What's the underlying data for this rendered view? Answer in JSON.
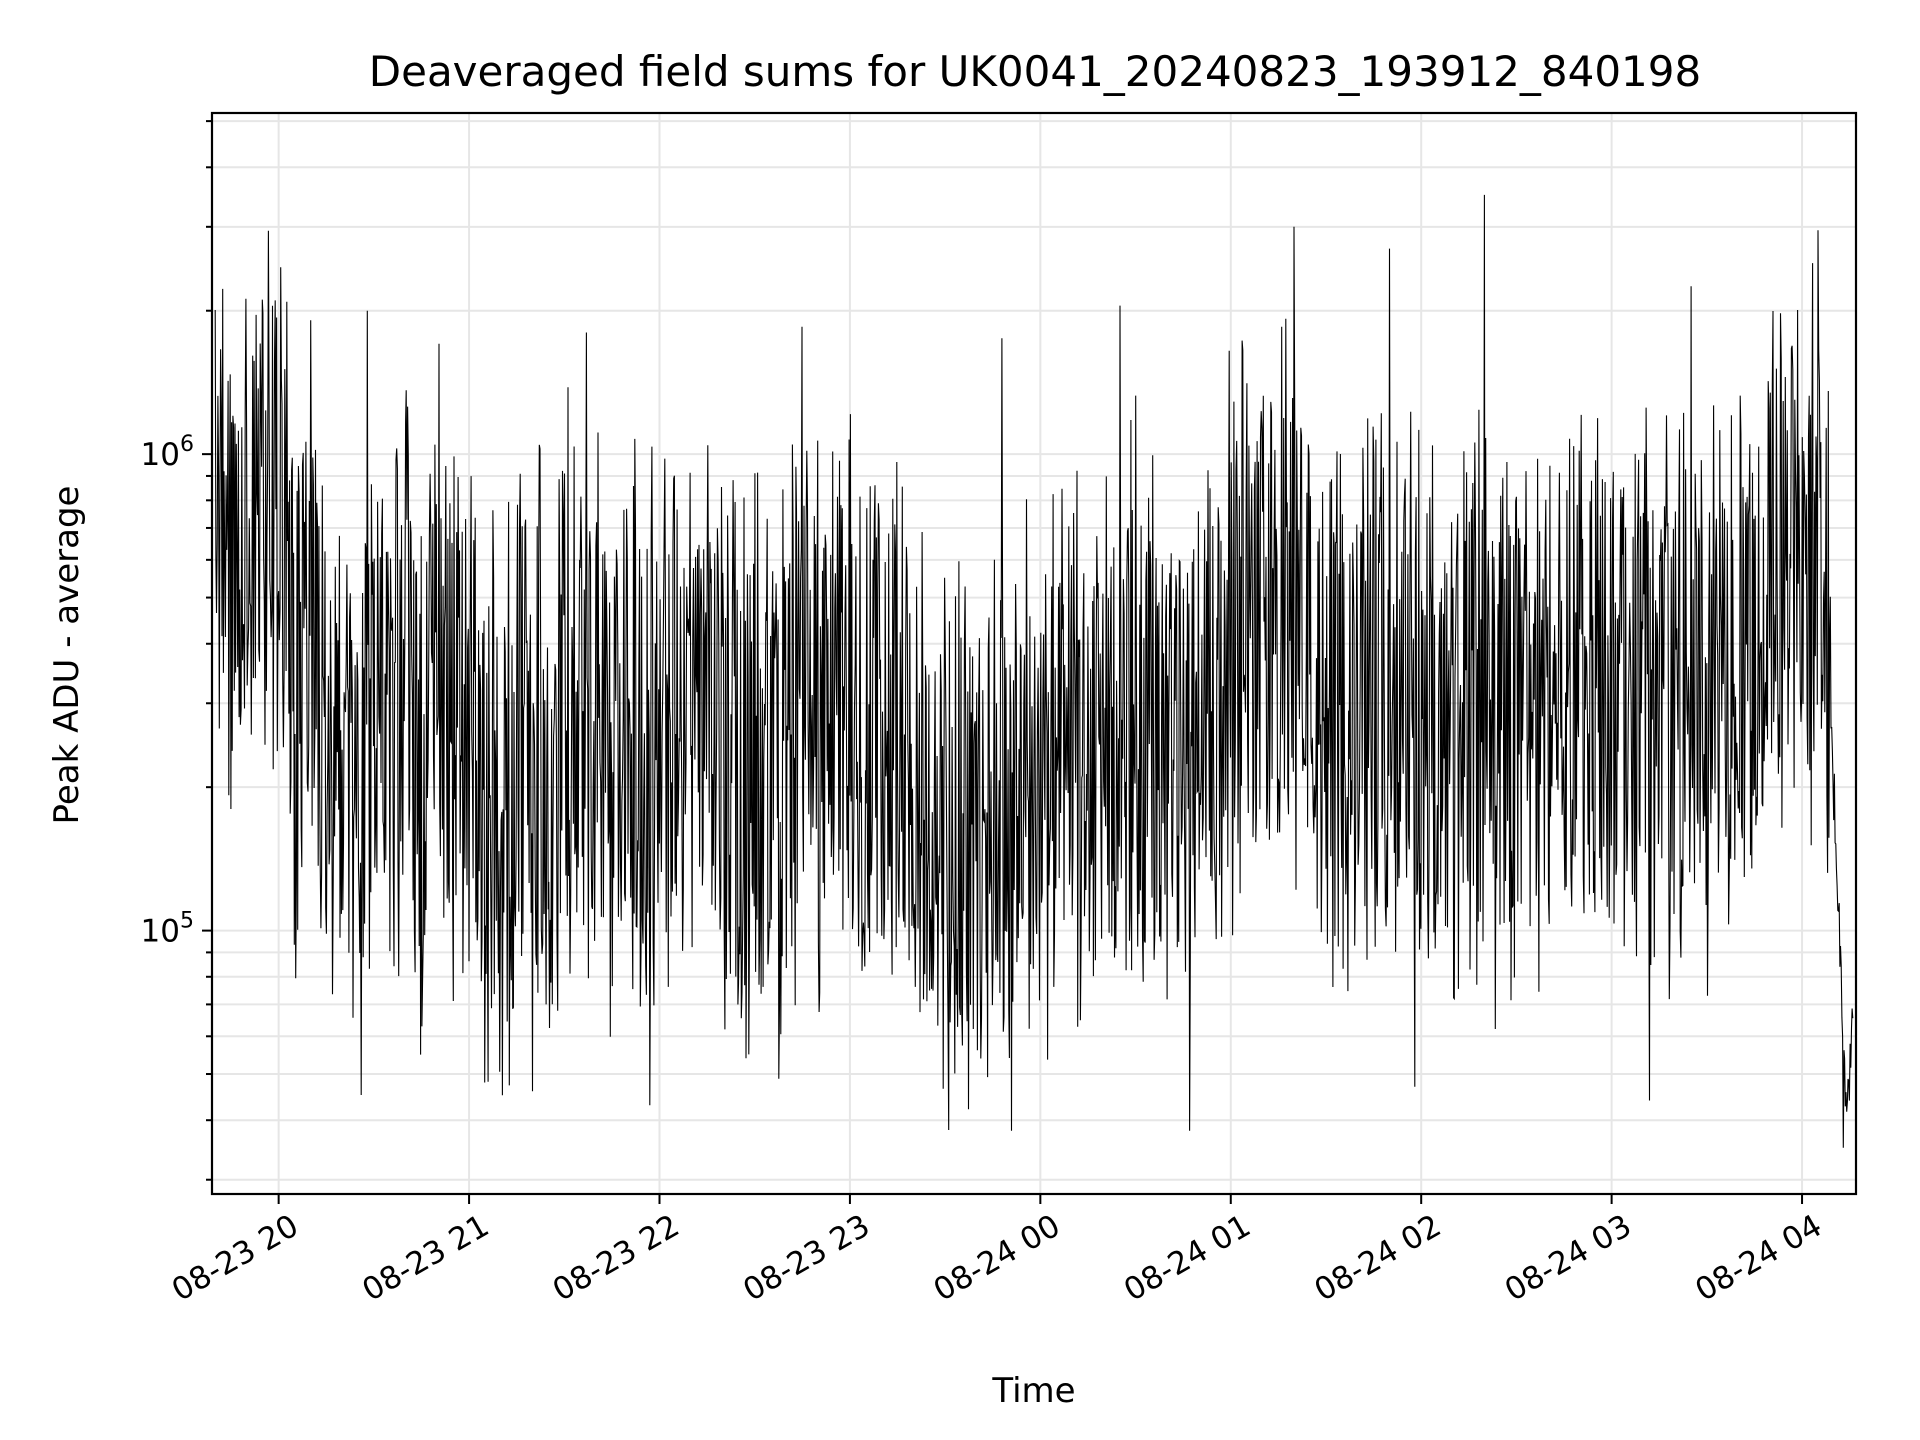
{
  "chart_data": {
    "type": "line",
    "title": "Deaveraged field sums for UK0041_20240823_193912_840198",
    "xlabel": "Time",
    "ylabel": "Peak ADU - average",
    "yscale": "log",
    "xlim": [
      "2024-08-23 19:39",
      "2024-08-24 04:17"
    ],
    "ylim": [
      28000,
      5200000
    ],
    "grid": true,
    "x_ticks": [
      "08-23 20",
      "08-23 21",
      "08-23 22",
      "08-23 23",
      "08-24 00",
      "08-24 01",
      "08-24 02",
      "08-24 03",
      "08-24 04"
    ],
    "y_ticks": [
      {
        "value": 100000,
        "base": "10",
        "exp": "5"
      },
      {
        "value": 1000000,
        "base": "10",
        "exp": "6"
      }
    ],
    "line_color": "#000000",
    "series": [
      {
        "points": [
          [
            "2024-08-23 19:40",
            800000
          ],
          [
            "2024-08-23 19:45",
            420000
          ],
          [
            "2024-08-23 19:50",
            600000
          ],
          [
            "2024-08-23 19:55",
            780000
          ],
          [
            "2024-08-23 20:00",
            900000
          ],
          [
            "2024-08-23 20:05",
            300000
          ],
          [
            "2024-08-23 20:10",
            520000
          ],
          [
            "2024-08-23 20:15",
            180000
          ],
          [
            "2024-08-23 20:20",
            250000
          ],
          [
            "2024-08-23 20:25",
            140000
          ],
          [
            "2024-08-23 20:30",
            380000
          ],
          [
            "2024-08-23 20:35",
            210000
          ],
          [
            "2024-08-23 20:40",
            330000
          ],
          [
            "2024-08-23 20:45",
            170000
          ],
          [
            "2024-08-23 20:50",
            420000
          ],
          [
            "2024-08-23 20:55",
            260000
          ],
          [
            "2024-08-23 21:00",
            310000
          ],
          [
            "2024-08-23 21:05",
            200000
          ],
          [
            "2024-08-23 21:10",
            150000
          ],
          [
            "2024-08-23 21:15",
            230000
          ],
          [
            "2024-08-23 21:20",
            290000
          ],
          [
            "2024-08-23 21:25",
            180000
          ],
          [
            "2024-08-23 21:30",
            350000
          ],
          [
            "2024-08-23 21:35",
            240000
          ],
          [
            "2024-08-23 21:40",
            270000
          ],
          [
            "2024-08-23 21:45",
            190000
          ],
          [
            "2024-08-23 21:50",
            320000
          ],
          [
            "2024-08-23 21:55",
            220000
          ],
          [
            "2024-08-23 22:00",
            260000
          ],
          [
            "2024-08-23 22:05",
            300000
          ],
          [
            "2024-08-23 22:10",
            210000
          ],
          [
            "2024-08-23 22:15",
            280000
          ],
          [
            "2024-08-23 22:20",
            240000
          ],
          [
            "2024-08-23 22:25",
            190000
          ],
          [
            "2024-08-23 22:30",
            230000
          ],
          [
            "2024-08-23 22:35",
            170000
          ],
          [
            "2024-08-23 22:40",
            200000
          ],
          [
            "2024-08-23 22:45",
            330000
          ],
          [
            "2024-08-23 22:50",
            250000
          ],
          [
            "2024-08-23 22:55",
            300000
          ],
          [
            "2024-08-23 23:00",
            280000
          ],
          [
            "2024-08-23 23:05",
            220000
          ],
          [
            "2024-08-23 23:10",
            260000
          ],
          [
            "2024-08-23 23:15",
            310000
          ],
          [
            "2024-08-23 23:20",
            200000
          ],
          [
            "2024-08-23 23:25",
            160000
          ],
          [
            "2024-08-23 23:30",
            140000
          ],
          [
            "2024-08-23 23:35",
            180000
          ],
          [
            "2024-08-23 23:40",
            150000
          ],
          [
            "2024-08-23 23:45",
            170000
          ],
          [
            "2024-08-23 23:50",
            190000
          ],
          [
            "2024-08-23 23:55",
            210000
          ],
          [
            "2024-08-24 00:00",
            230000
          ],
          [
            "2024-08-24 00:05",
            180000
          ],
          [
            "2024-08-24 00:10",
            250000
          ],
          [
            "2024-08-24 00:15",
            200000
          ],
          [
            "2024-08-24 00:20",
            270000
          ],
          [
            "2024-08-24 00:25",
            220000
          ],
          [
            "2024-08-24 00:30",
            300000
          ],
          [
            "2024-08-24 00:35",
            240000
          ],
          [
            "2024-08-24 00:40",
            260000
          ],
          [
            "2024-08-24 00:45",
            210000
          ],
          [
            "2024-08-24 00:50",
            290000
          ],
          [
            "2024-08-24 00:55",
            330000
          ],
          [
            "2024-08-24 01:00",
            380000
          ],
          [
            "2024-08-24 01:05",
            420000
          ],
          [
            "2024-08-24 01:10",
            500000
          ],
          [
            "2024-08-24 01:15",
            560000
          ],
          [
            "2024-08-24 01:20",
            480000
          ],
          [
            "2024-08-24 01:25",
            380000
          ],
          [
            "2024-08-24 01:30",
            300000
          ],
          [
            "2024-08-24 01:35",
            220000
          ],
          [
            "2024-08-24 01:40",
            260000
          ],
          [
            "2024-08-24 01:45",
            310000
          ],
          [
            "2024-08-24 01:50",
            280000
          ],
          [
            "2024-08-24 01:55",
            350000
          ],
          [
            "2024-08-24 02:00",
            300000
          ],
          [
            "2024-08-24 02:05",
            240000
          ],
          [
            "2024-08-24 02:10",
            270000
          ],
          [
            "2024-08-24 02:15",
            320000
          ],
          [
            "2024-08-24 02:20",
            260000
          ],
          [
            "2024-08-24 02:25",
            230000
          ],
          [
            "2024-08-24 02:30",
            280000
          ],
          [
            "2024-08-24 02:35",
            250000
          ],
          [
            "2024-08-24 02:40",
            300000
          ],
          [
            "2024-08-24 02:45",
            340000
          ],
          [
            "2024-08-24 02:50",
            270000
          ],
          [
            "2024-08-24 02:55",
            310000
          ],
          [
            "2024-08-24 03:00",
            360000
          ],
          [
            "2024-08-24 03:05",
            290000
          ],
          [
            "2024-08-24 03:10",
            330000
          ],
          [
            "2024-08-24 03:15",
            260000
          ],
          [
            "2024-08-24 03:20",
            300000
          ],
          [
            "2024-08-24 03:25",
            350000
          ],
          [
            "2024-08-24 03:30",
            280000
          ],
          [
            "2024-08-24 03:35",
            320000
          ],
          [
            "2024-08-24 03:40",
            380000
          ],
          [
            "2024-08-24 03:45",
            450000
          ],
          [
            "2024-08-24 03:50",
            550000
          ],
          [
            "2024-08-24 03:55",
            620000
          ],
          [
            "2024-08-24 04:00",
            700000
          ],
          [
            "2024-08-24 04:05",
            520000
          ],
          [
            "2024-08-24 04:08",
            330000
          ],
          [
            "2024-08-24 04:10",
            200000
          ],
          [
            "2024-08-24 04:12",
            90000
          ],
          [
            "2024-08-24 04:14",
            45000
          ],
          [
            "2024-08-24 04:16",
            60000
          ]
        ],
        "spikes": [
          [
            "2024-08-23 20:28",
            2000000
          ],
          [
            "2024-08-23 21:37",
            1800000
          ],
          [
            "2024-08-23 22:45",
            1850000
          ],
          [
            "2024-08-23 23:48",
            1750000
          ],
          [
            "2024-08-24 00:25",
            2050000
          ],
          [
            "2024-08-24 01:20",
            3000000
          ],
          [
            "2024-08-24 01:50",
            2700000
          ],
          [
            "2024-08-24 02:20",
            3500000
          ],
          [
            "2024-08-24 03:25",
            2250000
          ],
          [
            "2024-08-24 04:05",
            2950000
          ]
        ],
        "dips": [
          [
            "2024-08-23 21:05",
            48000
          ],
          [
            "2024-08-23 21:20",
            46000
          ],
          [
            "2024-08-23 21:57",
            43000
          ],
          [
            "2024-08-23 23:51",
            38000
          ],
          [
            "2024-08-24 00:47",
            38000
          ],
          [
            "2024-08-24 01:58",
            47000
          ],
          [
            "2024-08-24 03:12",
            44000
          ],
          [
            "2024-08-24 04:13",
            35000
          ]
        ]
      }
    ]
  }
}
